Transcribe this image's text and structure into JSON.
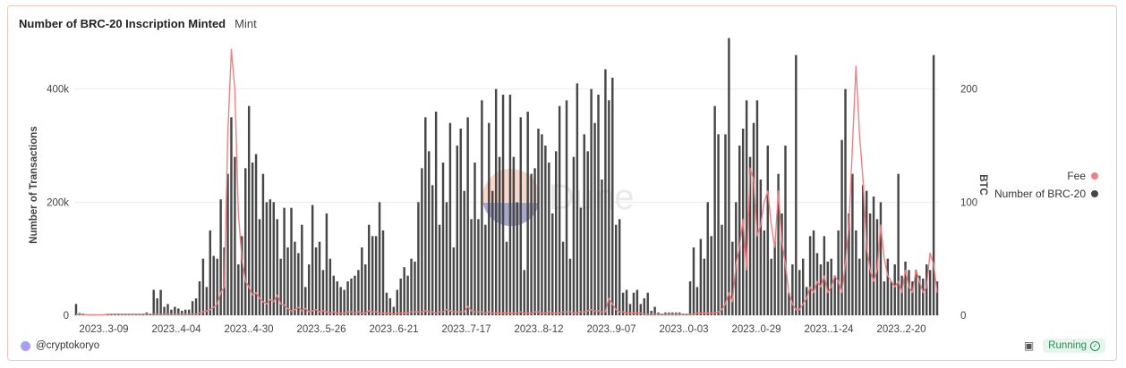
{
  "header": {
    "title": "Number of BRC-20 Inscription Minted",
    "subtitle": "Mint"
  },
  "footer": {
    "author": "@cryptokoryo",
    "status": "Running"
  },
  "watermark": {
    "text": "Dune"
  },
  "colors": {
    "fee": "#f08080",
    "count": "#474747",
    "grid": "#ececec",
    "card_border": "#efc7bd"
  },
  "chart_data": {
    "type": "bar",
    "title": "Number of BRC-20 Inscription Minted",
    "ylabel": "Number of Transactions",
    "y2label": "BTC",
    "ylim": [
      0,
      480000
    ],
    "y2lim": [
      0,
      240
    ],
    "yticks": [
      0,
      200000,
      400000
    ],
    "ytick_labels": [
      "0",
      "200k",
      "400k"
    ],
    "y2ticks": [
      0,
      100,
      200
    ],
    "y2tick_labels": [
      "0",
      "100",
      "200"
    ],
    "xtick_labels": [
      "2023..3-09",
      "2023..4-04",
      "2023..4-30",
      "2023..5-26",
      "2023..6-21",
      "2023..7-17",
      "2023..8-12",
      "2023..9-07",
      "2023..0-03",
      "2023..0-29",
      "2023..1-24",
      "2023..2-20"
    ],
    "legend": {
      "position": "right",
      "entries": [
        "Fee",
        "Number of BRC-20"
      ]
    },
    "series": [
      {
        "name": "Number of BRC-20",
        "type": "bar",
        "axis": "left",
        "values": [
          20000,
          4000,
          2000,
          1000,
          1000,
          500,
          500,
          1000,
          1000,
          2000,
          1500,
          3000,
          2000,
          1000,
          1000,
          1000,
          1000,
          1000,
          1000,
          2000,
          5000,
          2000,
          45000,
          30000,
          45000,
          15000,
          20000,
          10000,
          15000,
          12000,
          8000,
          10000,
          10000,
          25000,
          30000,
          60000,
          100000,
          50000,
          150000,
          105000,
          100000,
          205000,
          120000,
          250000,
          350000,
          280000,
          90000,
          140000,
          260000,
          370000,
          270000,
          285000,
          170000,
          250000,
          200000,
          205000,
          200000,
          170000,
          100000,
          190000,
          120000,
          190000,
          130000,
          110000,
          160000,
          50000,
          90000,
          195000,
          120000,
          130000,
          80000,
          180000,
          100000,
          70000,
          60000,
          50000,
          45000,
          60000,
          65000,
          70000,
          80000,
          120000,
          90000,
          160000,
          140000,
          140000,
          200000,
          150000,
          40000,
          30000,
          15000,
          45000,
          65000,
          85000,
          70000,
          100000,
          95000,
          200000,
          260000,
          350000,
          290000,
          230000,
          360000,
          160000,
          270000,
          200000,
          340000,
          120000,
          300000,
          330000,
          220000,
          350000,
          170000,
          270000,
          170000,
          380000,
          160000,
          340000,
          220000,
          400000,
          280000,
          390000,
          130000,
          390000,
          280000,
          200000,
          350000,
          80000,
          360000,
          250000,
          260000,
          330000,
          320000,
          300000,
          270000,
          180000,
          290000,
          370000,
          130000,
          380000,
          100000,
          280000,
          410000,
          190000,
          320000,
          290000,
          400000,
          340000,
          390000,
          240000,
          435000,
          380000,
          420000,
          160000,
          170000,
          40000,
          45000,
          20000,
          40000,
          45000,
          20000,
          30000,
          40000,
          8000,
          15000,
          5000,
          3000,
          5000,
          5000,
          5000,
          5000,
          5000,
          1000,
          2000,
          60000,
          120000,
          50000,
          135000,
          100000,
          200000,
          140000,
          370000,
          320000,
          160000,
          320000,
          490000,
          130000,
          200000,
          300000,
          330000,
          380000,
          280000,
          340000,
          380000,
          240000,
          150000,
          300000,
          100000,
          130000,
          250000,
          180000,
          300000,
          40000,
          90000,
          460000,
          80000,
          100000,
          50000,
          140000,
          150000,
          110000,
          90000,
          140000,
          95000,
          100000,
          70000,
          150000,
          310000,
          400000,
          180000,
          250000,
          150000,
          100000,
          230000,
          220000,
          180000,
          210000,
          170000,
          200000,
          60000,
          100000,
          60000,
          90000,
          250000,
          70000,
          95000,
          80000,
          60000,
          80000,
          70000,
          65000,
          90000,
          80000,
          460000,
          60000
        ]
      },
      {
        "name": "Fee",
        "type": "line",
        "axis": "right",
        "values": [
          1,
          1,
          1,
          0.5,
          0.5,
          0.5,
          0.5,
          0.5,
          0.5,
          1,
          1,
          1,
          1,
          1,
          1,
          1,
          1,
          1,
          1,
          1,
          1,
          1,
          1,
          1,
          1,
          1,
          1,
          1,
          1,
          1,
          1,
          1,
          1,
          1,
          1,
          2,
          3,
          4,
          5,
          7,
          10,
          20,
          25,
          160,
          235,
          200,
          90,
          50,
          30,
          25,
          18,
          20,
          15,
          12,
          10,
          14,
          12,
          18,
          10,
          9,
          6,
          4,
          5,
          7,
          4,
          6,
          3,
          4,
          5,
          3,
          4,
          3,
          2,
          3,
          2,
          2,
          2,
          3,
          3,
          2,
          3,
          2,
          2,
          4,
          3,
          3,
          2,
          2,
          2,
          2,
          1,
          2,
          2,
          2,
          2,
          3,
          3,
          3,
          3,
          4,
          3,
          3,
          2,
          3,
          3,
          5,
          4,
          3,
          3,
          3,
          3,
          8,
          4,
          3,
          3,
          3,
          2,
          3,
          2,
          2,
          2,
          2,
          2,
          2,
          2,
          2,
          3,
          2,
          2,
          2,
          3,
          3,
          2,
          2,
          3,
          2,
          2,
          2,
          3,
          3,
          3,
          2,
          2,
          3,
          3,
          4,
          5,
          4,
          4,
          3,
          3,
          15,
          10,
          5,
          3,
          3,
          2,
          2,
          2,
          2,
          2,
          1,
          1,
          1,
          1,
          1,
          1,
          1,
          1,
          1,
          1,
          1,
          1,
          1,
          1,
          1,
          2,
          2,
          2,
          2,
          2,
          2,
          3,
          5,
          10,
          20,
          12,
          45,
          60,
          85,
          40,
          130,
          120,
          70,
          80,
          100,
          110,
          80,
          60,
          110,
          65,
          45,
          20,
          10,
          5,
          5,
          10,
          15,
          25,
          20,
          30,
          25,
          35,
          20,
          25,
          35,
          30,
          20,
          45,
          80,
          150,
          220,
          160,
          120,
          60,
          40,
          30,
          40,
          80,
          50,
          35,
          30,
          25,
          30,
          20,
          40,
          25,
          20,
          40,
          30,
          20,
          25,
          55,
          45,
          20
        ]
      }
    ]
  }
}
